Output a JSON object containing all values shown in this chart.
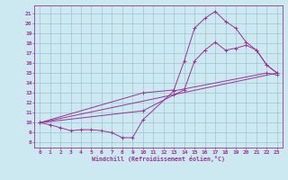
{
  "background_color": "#cce8f0",
  "line_color": "#993399",
  "grid_color": "#99bbcc",
  "xlim": [
    -0.5,
    23.5
  ],
  "ylim": [
    7.5,
    21.8
  ],
  "xticks": [
    0,
    1,
    2,
    3,
    4,
    5,
    6,
    7,
    8,
    9,
    10,
    11,
    12,
    13,
    14,
    15,
    16,
    17,
    18,
    19,
    20,
    21,
    22,
    23
  ],
  "yticks": [
    8,
    9,
    10,
    11,
    12,
    13,
    14,
    15,
    16,
    17,
    18,
    19,
    20,
    21
  ],
  "xlabel": "Windchill (Refroidissement éolien,°C)",
  "series": [
    {
      "x": [
        0,
        1,
        2,
        3,
        4,
        5,
        6,
        7,
        8,
        9,
        10,
        13,
        22,
        23
      ],
      "y": [
        10,
        9.8,
        9.5,
        9.2,
        9.3,
        9.3,
        9.2,
        9.0,
        8.5,
        8.5,
        10.3,
        13.2,
        15.0,
        14.8
      ]
    },
    {
      "x": [
        0,
        10,
        13,
        14,
        15,
        16,
        17,
        18,
        19,
        20,
        21,
        22,
        23
      ],
      "y": [
        10,
        13.0,
        13.3,
        16.2,
        19.5,
        20.5,
        21.2,
        20.2,
        19.5,
        18.1,
        17.3,
        15.8,
        15.0
      ]
    },
    {
      "x": [
        0,
        10,
        13,
        14,
        15,
        16,
        17,
        18,
        19,
        20,
        21,
        22,
        23
      ],
      "y": [
        10,
        11.2,
        12.8,
        13.3,
        16.2,
        17.3,
        18.1,
        17.3,
        17.5,
        17.8,
        17.3,
        15.8,
        15.0
      ]
    },
    {
      "x": [
        0,
        23
      ],
      "y": [
        10,
        15.0
      ],
      "no_marker": true
    }
  ]
}
